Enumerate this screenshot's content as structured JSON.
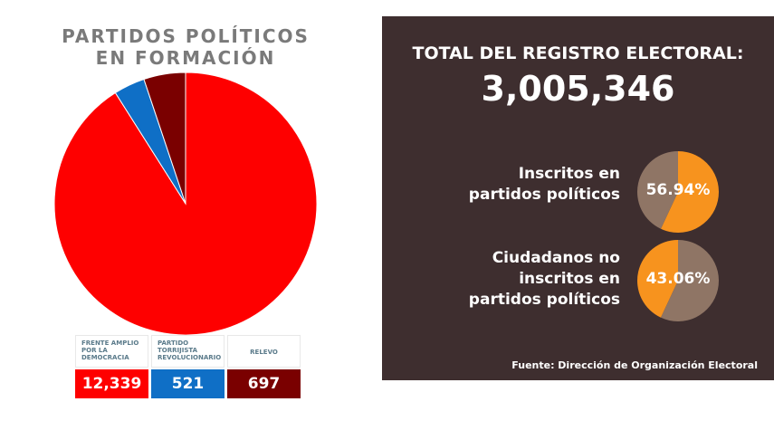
{
  "title_line1": "PARTIDOS POLÍTICOS",
  "title_line2": "EN FORMACIÓN",
  "chart_data": [
    {
      "type": "pie",
      "categories": [
        "FRENTE AMPLIO POR LA DEMOCRACIA",
        "PARTIDO TORRIJISTA REVOLUCIONARIO",
        "RELEVO"
      ],
      "values": [
        12339,
        521,
        697
      ],
      "colors": [
        "#fe0000",
        "#0f6fc6",
        "#7a0000"
      ],
      "value_labels": [
        "12,339",
        "521",
        "697"
      ]
    },
    {
      "type": "pie",
      "title": "Inscritos en partidos políticos",
      "values": [
        56.94,
        43.06
      ],
      "label": "56.94%",
      "colors": [
        "#f7931e",
        "#8f7565"
      ]
    },
    {
      "type": "pie",
      "title": "Ciudadanos no inscritos en partidos políticos",
      "values": [
        43.06,
        56.94
      ],
      "label": "43.06%",
      "colors": [
        "#f7931e",
        "#8f7565"
      ]
    }
  ],
  "panel": {
    "title": "TOTAL DEL REGISTRO ELECTORAL:",
    "total": "3,005,346",
    "label1": [
      "Inscritos en",
      "partidos políticos"
    ],
    "label2": [
      "Ciudadanos no",
      "inscritos en",
      "partidos políticos"
    ],
    "source": "Fuente: Dirección de Organización Electoral",
    "background": "#3e2e2f"
  }
}
